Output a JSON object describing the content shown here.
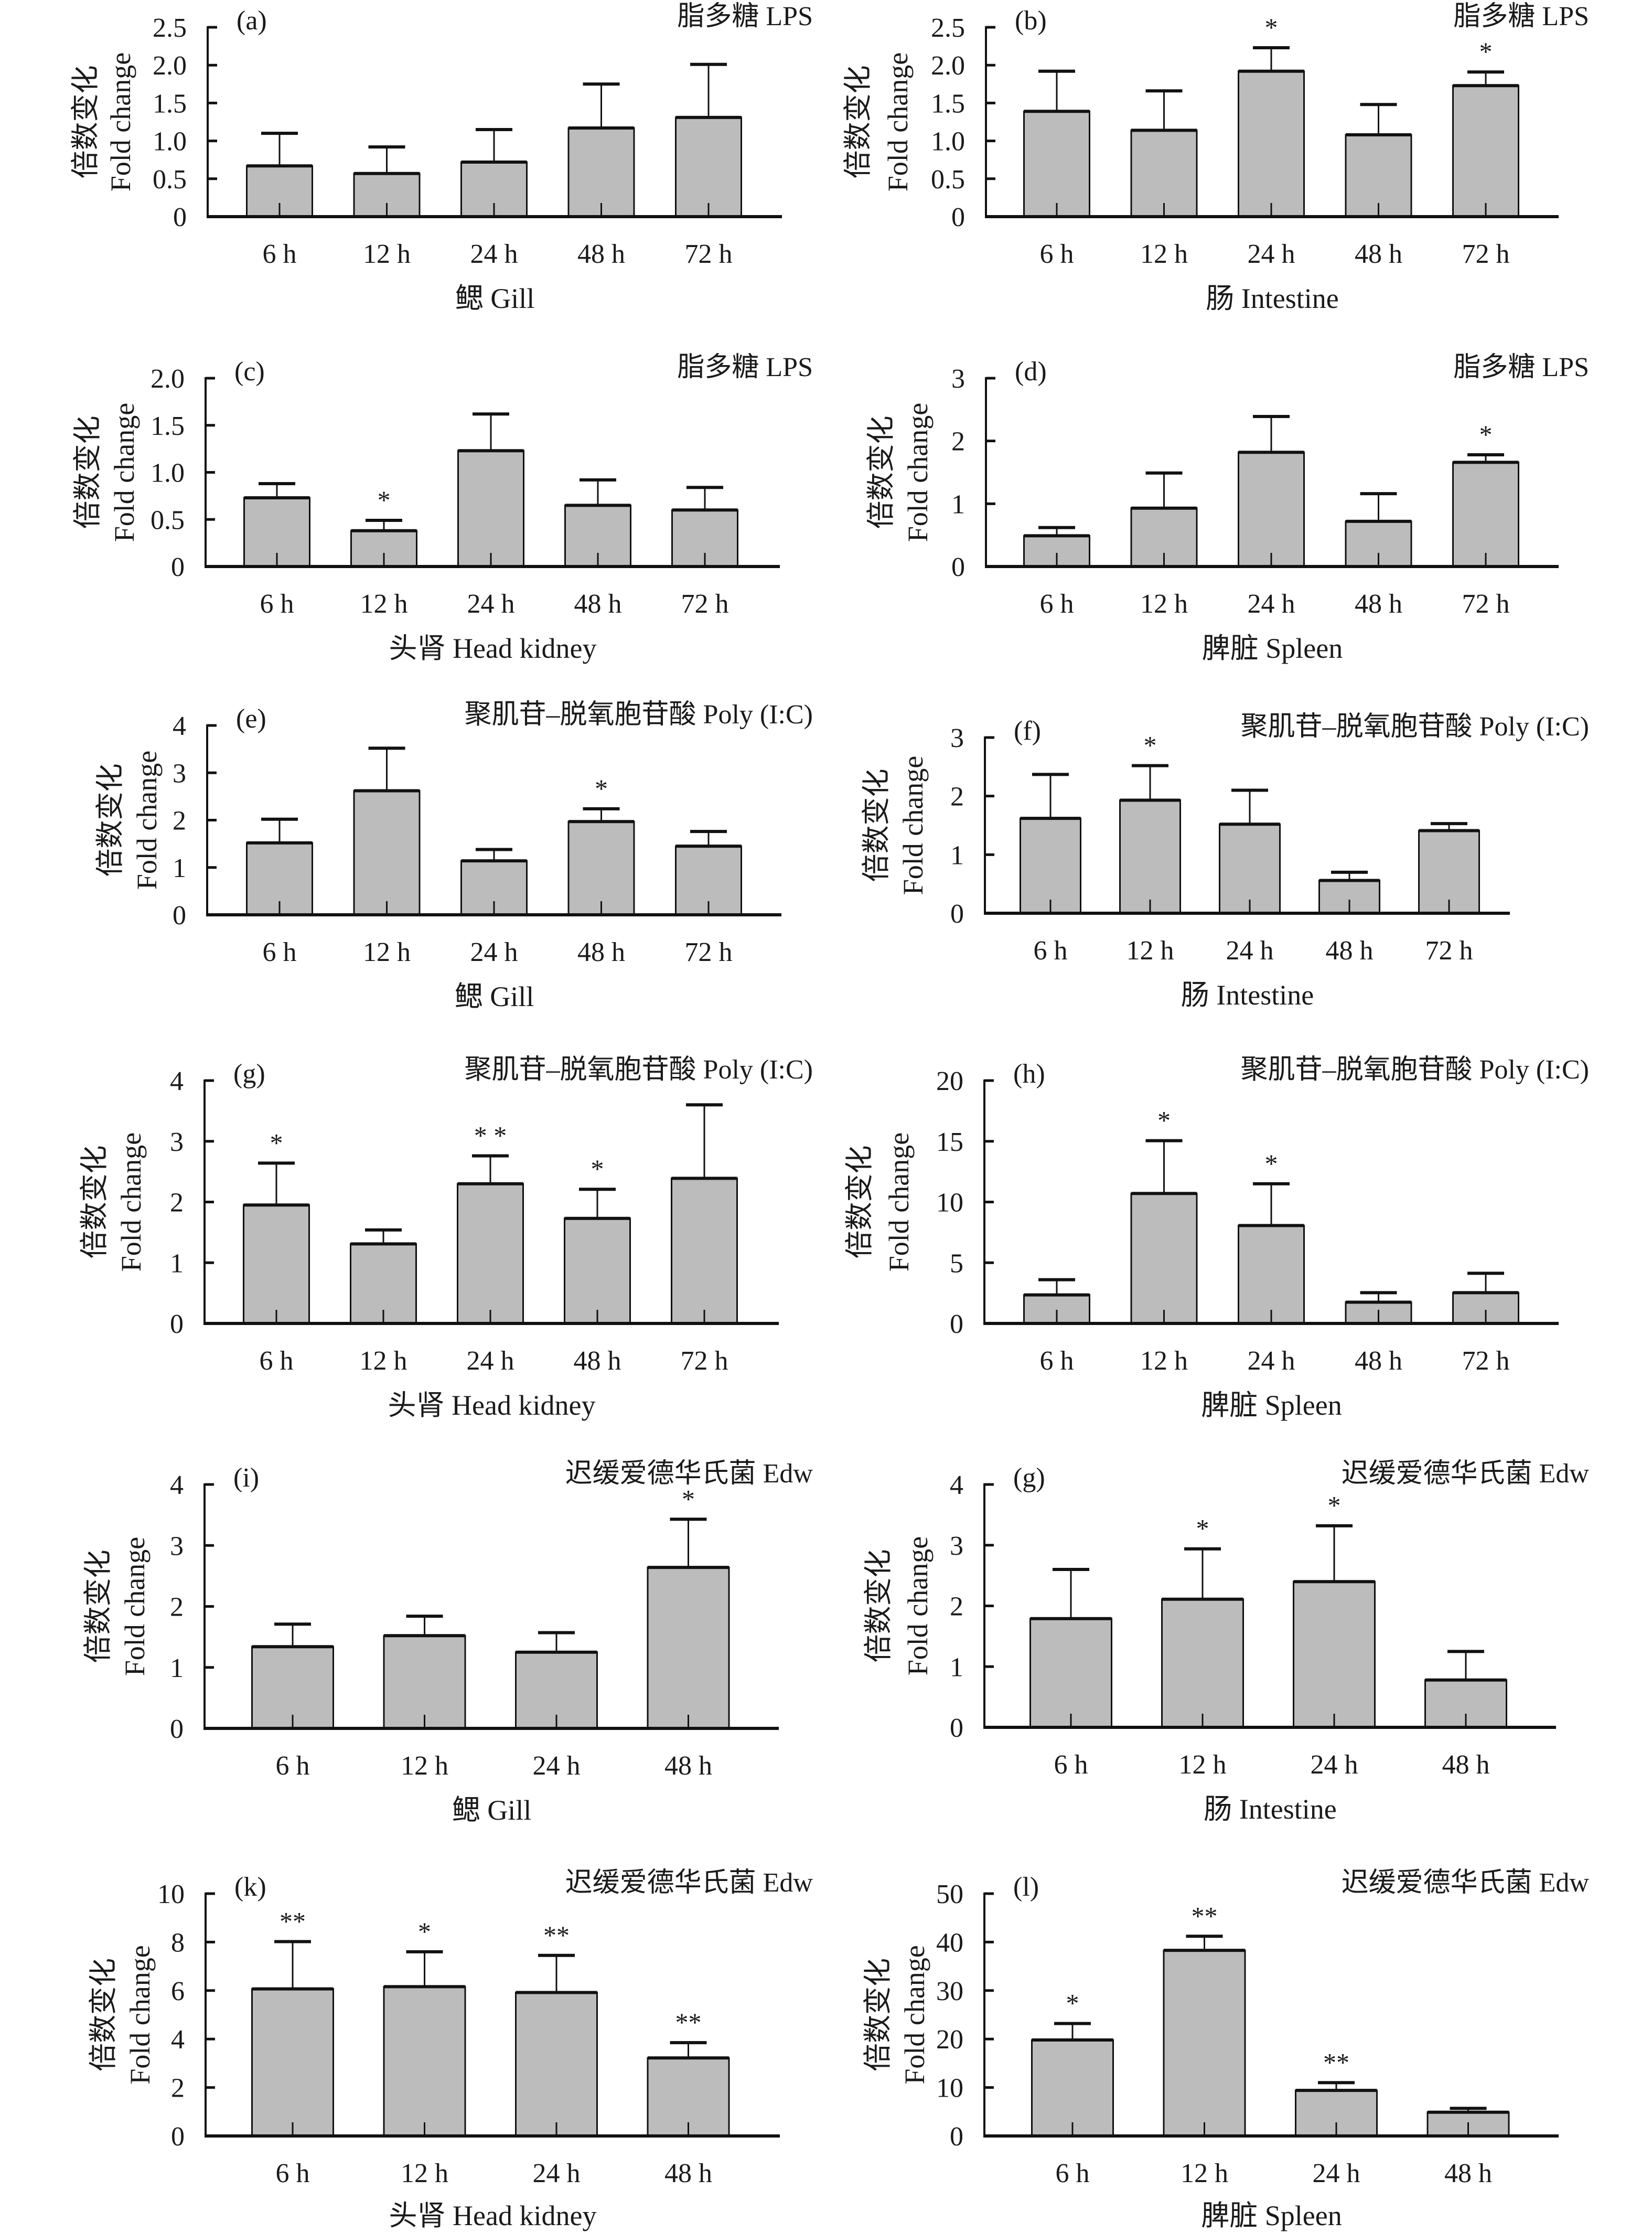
{
  "y_axis_title": {
    "zh": "倍数变化",
    "en": "Fold change"
  },
  "chart_data": [
    {
      "type": "bar",
      "panel": "(a)",
      "treatment": "脂多糖 LPS",
      "organ": "鳃 Gill",
      "categories": [
        "6 h",
        "12 h",
        "24 h",
        "48 h",
        "72 h"
      ],
      "values": [
        0.67,
        0.57,
        0.72,
        1.17,
        1.31
      ],
      "error_upper": [
        1.1,
        0.92,
        1.15,
        1.75,
        2.01
      ],
      "significance": [
        "",
        "",
        "",
        "",
        ""
      ],
      "ylim": [
        0,
        2.5
      ],
      "yticks": [
        "0",
        "0.5",
        "1.0",
        "1.5",
        "2.0",
        "2.5"
      ],
      "ytick_values": [
        0,
        0.5,
        1,
        1.5,
        2,
        2.5
      ]
    },
    {
      "type": "bar",
      "panel": "(b)",
      "treatment": "脂多糖 LPS",
      "organ": "肠 Intestine",
      "categories": [
        "6 h",
        "12 h",
        "24 h",
        "48 h",
        "72 h"
      ],
      "values": [
        1.39,
        1.14,
        1.92,
        1.08,
        1.73
      ],
      "error_upper": [
        1.92,
        1.66,
        2.23,
        1.48,
        1.91
      ],
      "significance": [
        "",
        "",
        "*",
        "",
        "*"
      ],
      "ylim": [
        0,
        2.5
      ],
      "yticks": [
        "0",
        "0.5",
        "1.0",
        "1.5",
        "2.0",
        "2.5"
      ],
      "ytick_values": [
        0,
        0.5,
        1,
        1.5,
        2,
        2.5
      ]
    },
    {
      "type": "bar",
      "panel": "(c)",
      "treatment": "脂多糖 LPS",
      "organ": "头肾 Head kidney",
      "categories": [
        "6 h",
        "12 h",
        "24 h",
        "48 h",
        "72 h"
      ],
      "values": [
        0.73,
        0.38,
        1.23,
        0.65,
        0.6
      ],
      "error_upper": [
        0.88,
        0.49,
        1.62,
        0.92,
        0.84
      ],
      "significance": [
        "",
        "*",
        "",
        "",
        ""
      ],
      "ylim": [
        0,
        2.0
      ],
      "yticks": [
        "0",
        "0.5",
        "1.0",
        "1.5",
        "2.0"
      ],
      "ytick_values": [
        0,
        0.5,
        1,
        1.5,
        2
      ]
    },
    {
      "type": "bar",
      "panel": "(d)",
      "treatment": "脂多糖 LPS",
      "organ": "脾脏 Spleen",
      "categories": [
        "6 h",
        "12 h",
        "24 h",
        "48 h",
        "72 h"
      ],
      "values": [
        0.49,
        0.93,
        1.82,
        0.72,
        1.66
      ],
      "error_upper": [
        0.62,
        1.49,
        2.39,
        1.16,
        1.78
      ],
      "significance": [
        "",
        "",
        "",
        "",
        "*"
      ],
      "ylim": [
        0,
        3
      ],
      "yticks": [
        "0",
        "1",
        "2",
        "3"
      ],
      "ytick_values": [
        0,
        1,
        2,
        3
      ]
    },
    {
      "type": "bar",
      "panel": "(e)",
      "treatment": "聚肌苷–脱氧胞苷酸 Poly (I:C)",
      "organ": "鳃 Gill",
      "categories": [
        "6 h",
        "12 h",
        "24 h",
        "48 h",
        "72 h"
      ],
      "values": [
        1.52,
        2.62,
        1.14,
        1.97,
        1.45
      ],
      "error_upper": [
        2.02,
        3.52,
        1.38,
        2.24,
        1.76
      ],
      "significance": [
        "",
        "",
        "",
        "*",
        ""
      ],
      "ylim": [
        0,
        4
      ],
      "yticks": [
        "0",
        "1",
        "2",
        "3",
        "4"
      ],
      "ytick_values": [
        0,
        1,
        2,
        3,
        4
      ]
    },
    {
      "type": "bar",
      "panel": "(f)",
      "treatment": "聚肌苷–脱氧胞苷酸 Poly (I:C)",
      "organ": "肠 Intestine",
      "categories": [
        "6 h",
        "12 h",
        "24 h",
        "48 h",
        "72 h"
      ],
      "values": [
        1.62,
        1.93,
        1.52,
        0.56,
        1.41
      ],
      "error_upper": [
        2.37,
        2.52,
        2.1,
        0.7,
        1.53
      ],
      "significance": [
        "",
        "*",
        "",
        "",
        ""
      ],
      "ylim": [
        0,
        3
      ],
      "yticks": [
        "0",
        "1",
        "2",
        "3"
      ],
      "ytick_values": [
        0,
        1,
        2,
        3
      ]
    },
    {
      "type": "bar",
      "panel": "(g)",
      "treatment": "聚肌苷–脱氧胞苷酸 Poly (I:C)",
      "organ": "头肾 Head kidney",
      "categories": [
        "6 h",
        "12 h",
        "24 h",
        "48 h",
        "72 h"
      ],
      "values": [
        1.95,
        1.31,
        2.3,
        1.73,
        2.39
      ],
      "error_upper": [
        2.64,
        1.54,
        2.76,
        2.21,
        3.6
      ],
      "significance": [
        "*",
        "",
        "* *",
        "*",
        ""
      ],
      "ylim": [
        0,
        4
      ],
      "yticks": [
        "0",
        "1",
        "2",
        "3",
        "4"
      ],
      "ytick_values": [
        0,
        1,
        2,
        3,
        4
      ]
    },
    {
      "type": "bar",
      "panel": "(h)",
      "treatment": "聚肌苷–脱氧胞苷酸 Poly (I:C)",
      "organ": "脾脏 Spleen",
      "categories": [
        "6 h",
        "12 h",
        "24 h",
        "48 h",
        "72 h"
      ],
      "values": [
        2.35,
        10.7,
        8.06,
        1.75,
        2.53
      ],
      "error_upper": [
        3.6,
        15.05,
        11.5,
        2.53,
        4.13
      ],
      "significance": [
        "",
        "*",
        "*",
        "",
        ""
      ],
      "ylim": [
        0,
        20
      ],
      "yticks": [
        "0",
        "5",
        "10",
        "15",
        "20"
      ],
      "ytick_values": [
        0,
        5,
        10,
        15,
        20
      ]
    },
    {
      "type": "bar",
      "panel": "(i)",
      "treatment": "迟缓爱德华氏菌 Edw",
      "organ": "鳃 Gill",
      "categories": [
        "6 h",
        "12 h",
        "24 h",
        "48 h"
      ],
      "values": [
        1.34,
        1.52,
        1.25,
        2.64
      ],
      "error_upper": [
        1.71,
        1.84,
        1.57,
        3.43
      ],
      "significance": [
        "",
        "",
        "",
        "*"
      ],
      "ylim": [
        0,
        4
      ],
      "yticks": [
        "0",
        "1",
        "2",
        "3",
        "4"
      ],
      "ytick_values": [
        0,
        1,
        2,
        3,
        4
      ]
    },
    {
      "type": "bar",
      "panel": "(g)",
      "treatment": "迟缓爱德华氏菌 Edw",
      "organ": "肠 Intestine",
      "categories": [
        "6 h",
        "12 h",
        "24 h",
        "48 h"
      ],
      "values": [
        1.79,
        2.11,
        2.4,
        0.78
      ],
      "error_upper": [
        2.6,
        2.94,
        3.32,
        1.25
      ],
      "significance": [
        "",
        "*",
        "*",
        ""
      ],
      "ylim": [
        0,
        4
      ],
      "yticks": [
        "0",
        "1",
        "2",
        "3",
        "4"
      ],
      "ytick_values": [
        0,
        1,
        2,
        3,
        4
      ]
    },
    {
      "type": "bar",
      "panel": "(k)",
      "treatment": "迟缓爱德华氏菌 Edw",
      "organ": "头肾 Head kidney",
      "categories": [
        "6 h",
        "12 h",
        "24 h",
        "48 h"
      ],
      "values": [
        6.07,
        6.16,
        5.92,
        3.22
      ],
      "error_upper": [
        8.02,
        7.6,
        7.45,
        3.85
      ],
      "significance": [
        "**",
        "*",
        "**",
        "**"
      ],
      "ylim": [
        0,
        10
      ],
      "yticks": [
        "0",
        "2",
        "4",
        "6",
        "8",
        "10"
      ],
      "ytick_values": [
        0,
        2,
        4,
        6,
        8,
        10
      ]
    },
    {
      "type": "bar",
      "panel": "(l)",
      "treatment": "迟缓爱德华氏菌 Edw",
      "organ": "脾脏 Spleen",
      "categories": [
        "6 h",
        "12 h",
        "24 h",
        "48 h"
      ],
      "values": [
        19.8,
        38.3,
        9.4,
        4.9
      ],
      "error_upper": [
        23.2,
        41.2,
        11.0,
        5.7
      ],
      "significance": [
        "*",
        "**",
        "**",
        ""
      ],
      "ylim": [
        0,
        50
      ],
      "yticks": [
        "0",
        "10",
        "20",
        "30",
        "40",
        "50"
      ],
      "ytick_values": [
        0,
        10,
        20,
        30,
        40,
        50
      ]
    }
  ],
  "colors": {
    "bar_fill": "#bcbcbc",
    "stroke": "#111111",
    "text": "#1a1a1a"
  }
}
